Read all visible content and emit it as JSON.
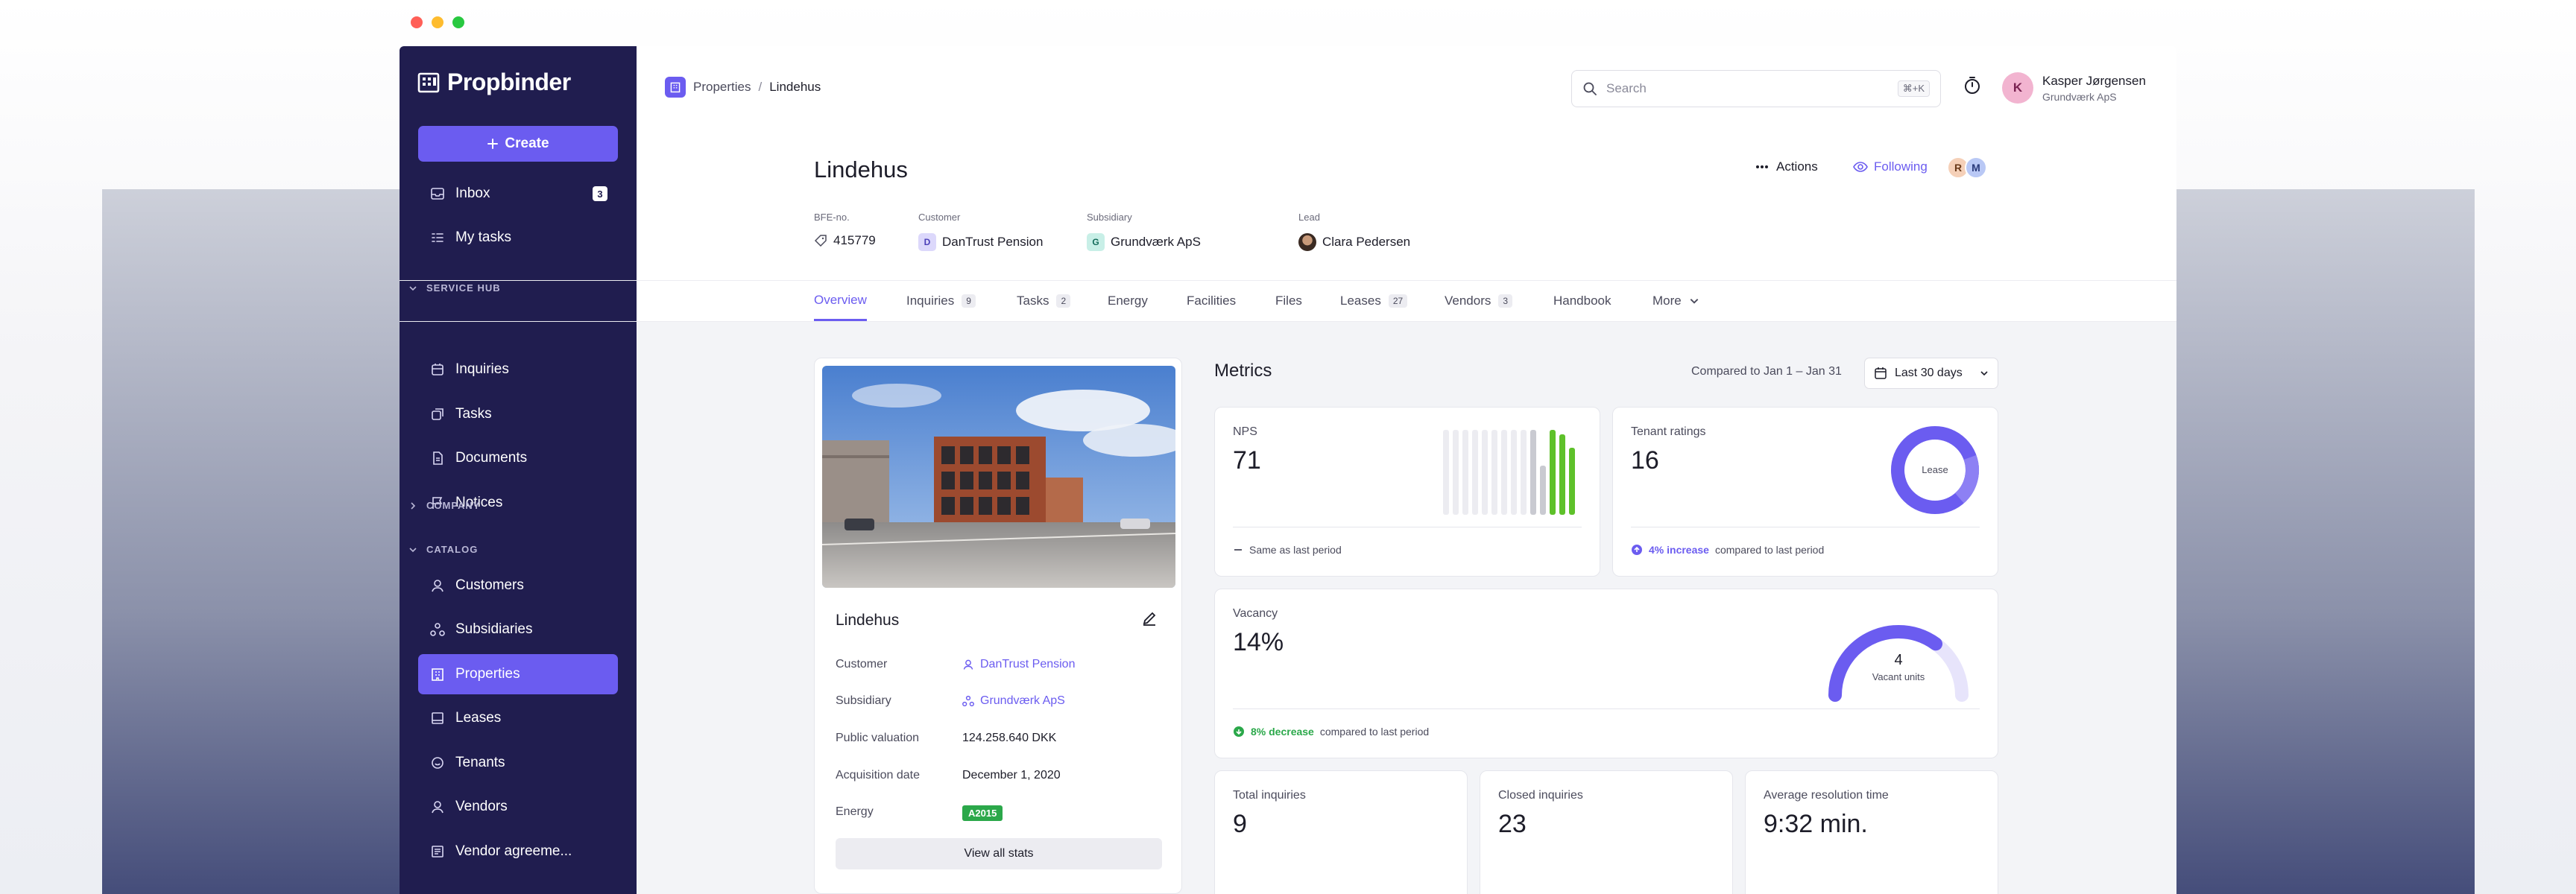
{
  "app": {
    "name": "Propbinder"
  },
  "sidebar": {
    "create_label": "Create",
    "inbox": {
      "label": "Inbox",
      "count": "3"
    },
    "my_tasks": "My tasks",
    "sections": {
      "service_hub": "SERVICE HUB",
      "company": "COMPANY",
      "catalog": "CATALOG"
    },
    "service_hub_items": [
      "Inquiries",
      "Tasks",
      "Documents",
      "Notices"
    ],
    "catalog_items": [
      "Customers",
      "Subsidiaries",
      "Properties",
      "Leases",
      "Tenants",
      "Vendors",
      "Vendor agreeme..."
    ]
  },
  "topbar": {
    "breadcrumb": {
      "parent": "Properties",
      "separator": "/",
      "current": "Lindehus"
    },
    "search_placeholder": "Search",
    "search_shortcut": "⌘+K",
    "user": {
      "initial": "K",
      "name": "Kasper Jørgensen",
      "company": "Grundværk ApS"
    }
  },
  "header": {
    "title": "Lindehus",
    "actions_label": "Actions",
    "following_label": "Following",
    "followers": [
      "R",
      "M"
    ],
    "meta": {
      "bfe": {
        "label": "BFE-no.",
        "value": "415779"
      },
      "customer": {
        "label": "Customer",
        "initial": "D",
        "value": "DanTrust Pension"
      },
      "subsidiary": {
        "label": "Subsidiary",
        "initial": "G",
        "value": "Grundværk ApS"
      },
      "lead": {
        "label": "Lead",
        "value": "Clara Pedersen"
      }
    }
  },
  "tabs": [
    {
      "label": "Overview",
      "count": ""
    },
    {
      "label": "Inquiries",
      "count": "9"
    },
    {
      "label": "Tasks",
      "count": "2"
    },
    {
      "label": "Energy",
      "count": ""
    },
    {
      "label": "Facilities",
      "count": ""
    },
    {
      "label": "Files",
      "count": ""
    },
    {
      "label": "Leases",
      "count": "27"
    },
    {
      "label": "Vendors",
      "count": "3"
    },
    {
      "label": "Handbook",
      "count": ""
    },
    {
      "label": "More",
      "count": ""
    }
  ],
  "property_card": {
    "name": "Lindehus",
    "rows": {
      "customer": {
        "label": "Customer",
        "value": "DanTrust Pension"
      },
      "subsidiary": {
        "label": "Subsidiary",
        "value": "Grundværk ApS"
      },
      "valuation": {
        "label": "Public valuation",
        "value": "124.258.640 DKK"
      },
      "acquisition": {
        "label": "Acquisition date",
        "value": "December 1, 2020"
      },
      "energy": {
        "label": "Energy",
        "value": "A2015"
      }
    },
    "view_all_label": "View all stats"
  },
  "metrics": {
    "title": "Metrics",
    "compared_label": "Compared to Jan 1 – Jan 31",
    "range_label": "Last 30 days",
    "nps": {
      "label": "NPS",
      "value": "71",
      "footer": "Same as last period",
      "bar_levels": [
        0.95,
        0.95,
        0.95,
        0.95,
        0.95,
        0.95,
        0.95,
        0.95,
        0.95,
        0.95,
        0.55,
        0.95,
        0.9,
        0.75
      ]
    },
    "tenant_ratings": {
      "label": "Tenant ratings",
      "value": "16",
      "donut_label": "Lease",
      "footer_highlight": "4% increase",
      "footer_rest": "compared to last period"
    },
    "vacancy": {
      "label": "Vacancy",
      "value": "14%",
      "gauge_value": "4",
      "gauge_label": "Vacant units",
      "gauge_fraction": 0.7,
      "footer_highlight": "8% decrease",
      "footer_rest": "compared to last period"
    },
    "inquiries": [
      {
        "label": "Total inquiries",
        "value": "9"
      },
      {
        "label": "Closed inquiries",
        "value": "23"
      },
      {
        "label": "Average resolution time",
        "value": "9:32 min."
      }
    ]
  },
  "colors": {
    "sidebar": "#201d4f",
    "accent": "#6b5cf0",
    "success": "#2ba84a",
    "nps_green": "#5ec12a"
  }
}
